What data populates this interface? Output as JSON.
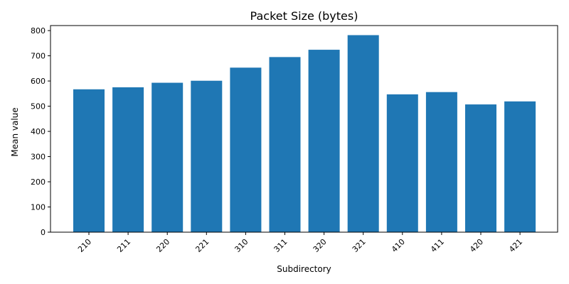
{
  "chart_data": {
    "type": "bar",
    "title": "Packet Size (bytes)",
    "xlabel": "Subdirectory",
    "ylabel": "Mean value",
    "categories": [
      "210",
      "211",
      "220",
      "221",
      "310",
      "311",
      "320",
      "321",
      "410",
      "411",
      "420",
      "421"
    ],
    "values": [
      567,
      575,
      593,
      601,
      653,
      695,
      724,
      782,
      547,
      556,
      507,
      519
    ],
    "ylim": [
      0,
      820
    ],
    "yticks": [
      0,
      100,
      200,
      300,
      400,
      500,
      600,
      700,
      800
    ],
    "ytick_labels": [
      "0",
      "100",
      "200",
      "300",
      "400",
      "500",
      "600",
      "700",
      "800"
    ],
    "bar_color": "#1f77b4",
    "grid": false,
    "legend": "none"
  }
}
